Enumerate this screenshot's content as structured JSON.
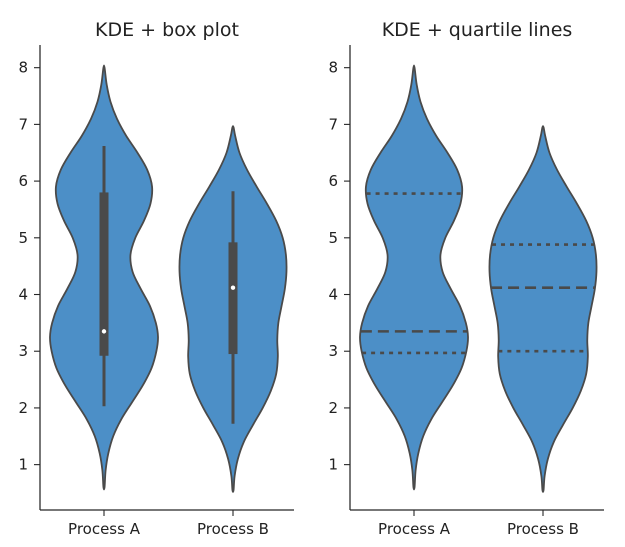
{
  "chart_data": [
    {
      "type": "violin",
      "title": "KDE + box plot",
      "inner": "box",
      "xlabel": "",
      "ylabel": "",
      "categories": [
        "Process A",
        "Process B"
      ],
      "ylim": [
        0.2,
        8.4
      ],
      "yticks": [
        "1",
        "2",
        "3",
        "4",
        "5",
        "6",
        "7",
        "8"
      ],
      "color": "#4c8fc7",
      "edge_color": "#4a4a4a",
      "grid": false,
      "violins": [
        {
          "category": "Process A",
          "range": [
            0.6,
            8.0
          ],
          "median": 3.35,
          "q1": 2.92,
          "q3": 5.8,
          "whisker_low": 2.03,
          "whisker_high": 6.62,
          "density": [
            [
              0.6,
              0.01
            ],
            [
              0.9,
              0.03
            ],
            [
              1.2,
              0.08
            ],
            [
              1.5,
              0.17
            ],
            [
              1.8,
              0.32
            ],
            [
              2.1,
              0.52
            ],
            [
              2.4,
              0.72
            ],
            [
              2.7,
              0.88
            ],
            [
              3.0,
              0.97
            ],
            [
              3.25,
              1.0
            ],
            [
              3.5,
              0.96
            ],
            [
              3.8,
              0.85
            ],
            [
              4.1,
              0.68
            ],
            [
              4.4,
              0.53
            ],
            [
              4.7,
              0.49
            ],
            [
              5.0,
              0.58
            ],
            [
              5.3,
              0.74
            ],
            [
              5.6,
              0.86
            ],
            [
              5.9,
              0.89
            ],
            [
              6.2,
              0.8
            ],
            [
              6.5,
              0.62
            ],
            [
              6.8,
              0.41
            ],
            [
              7.1,
              0.24
            ],
            [
              7.4,
              0.12
            ],
            [
              7.7,
              0.05
            ],
            [
              8.0,
              0.01
            ]
          ]
        },
        {
          "category": "Process B",
          "range": [
            0.55,
            6.95
          ],
          "median": 4.12,
          "q1": 2.95,
          "q3": 4.92,
          "whisker_low": 1.72,
          "whisker_high": 5.82,
          "density": [
            [
              0.55,
              0.01
            ],
            [
              0.8,
              0.03
            ],
            [
              1.1,
              0.09
            ],
            [
              1.4,
              0.2
            ],
            [
              1.7,
              0.37
            ],
            [
              2.0,
              0.55
            ],
            [
              2.3,
              0.7
            ],
            [
              2.6,
              0.8
            ],
            [
              2.9,
              0.83
            ],
            [
              3.2,
              0.82
            ],
            [
              3.5,
              0.84
            ],
            [
              3.8,
              0.9
            ],
            [
              4.1,
              0.96
            ],
            [
              4.4,
              0.99
            ],
            [
              4.7,
              0.98
            ],
            [
              5.0,
              0.92
            ],
            [
              5.3,
              0.8
            ],
            [
              5.6,
              0.63
            ],
            [
              5.9,
              0.44
            ],
            [
              6.2,
              0.26
            ],
            [
              6.5,
              0.12
            ],
            [
              6.8,
              0.04
            ],
            [
              6.95,
              0.01
            ]
          ]
        }
      ]
    },
    {
      "type": "violin",
      "title": "KDE + quartile lines",
      "inner": "quartile",
      "xlabel": "",
      "ylabel": "",
      "categories": [
        "Process A",
        "Process B"
      ],
      "ylim": [
        0.2,
        8.4
      ],
      "yticks": [
        "1",
        "2",
        "3",
        "4",
        "5",
        "6",
        "7",
        "8"
      ],
      "color": "#4c8fc7",
      "edge_color": "#4a4a4a",
      "grid": false,
      "violins": [
        {
          "category": "Process A",
          "range": [
            0.6,
            8.0
          ],
          "median": 3.35,
          "q1": 2.97,
          "q3": 5.78,
          "density": [
            [
              0.6,
              0.01
            ],
            [
              0.9,
              0.03
            ],
            [
              1.2,
              0.08
            ],
            [
              1.5,
              0.17
            ],
            [
              1.8,
              0.32
            ],
            [
              2.1,
              0.52
            ],
            [
              2.4,
              0.72
            ],
            [
              2.7,
              0.88
            ],
            [
              3.0,
              0.97
            ],
            [
              3.25,
              1.0
            ],
            [
              3.5,
              0.96
            ],
            [
              3.8,
              0.85
            ],
            [
              4.1,
              0.68
            ],
            [
              4.4,
              0.53
            ],
            [
              4.7,
              0.49
            ],
            [
              5.0,
              0.58
            ],
            [
              5.3,
              0.74
            ],
            [
              5.6,
              0.86
            ],
            [
              5.9,
              0.89
            ],
            [
              6.2,
              0.8
            ],
            [
              6.5,
              0.62
            ],
            [
              6.8,
              0.41
            ],
            [
              7.1,
              0.24
            ],
            [
              7.4,
              0.12
            ],
            [
              7.7,
              0.05
            ],
            [
              8.0,
              0.01
            ]
          ]
        },
        {
          "category": "Process B",
          "range": [
            0.55,
            6.95
          ],
          "median": 4.12,
          "q1": 3.0,
          "q3": 4.88,
          "density": [
            [
              0.55,
              0.01
            ],
            [
              0.8,
              0.03
            ],
            [
              1.1,
              0.09
            ],
            [
              1.4,
              0.2
            ],
            [
              1.7,
              0.37
            ],
            [
              2.0,
              0.55
            ],
            [
              2.3,
              0.7
            ],
            [
              2.6,
              0.8
            ],
            [
              2.9,
              0.83
            ],
            [
              3.2,
              0.82
            ],
            [
              3.5,
              0.84
            ],
            [
              3.8,
              0.9
            ],
            [
              4.1,
              0.96
            ],
            [
              4.4,
              0.99
            ],
            [
              4.7,
              0.98
            ],
            [
              5.0,
              0.92
            ],
            [
              5.3,
              0.8
            ],
            [
              5.6,
              0.63
            ],
            [
              5.9,
              0.44
            ],
            [
              6.2,
              0.26
            ],
            [
              6.5,
              0.12
            ],
            [
              6.8,
              0.04
            ],
            [
              6.95,
              0.01
            ]
          ]
        }
      ]
    }
  ]
}
